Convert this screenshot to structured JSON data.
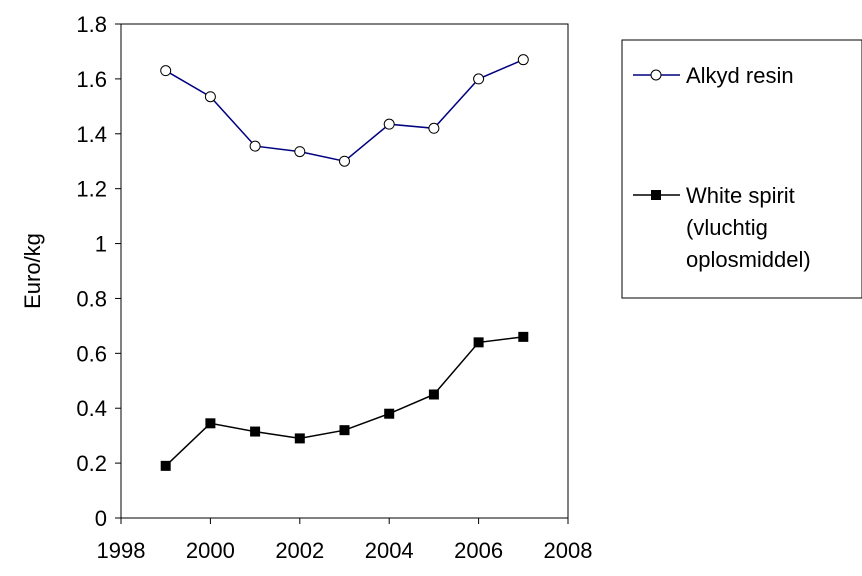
{
  "chart_data": {
    "type": "line",
    "title": "",
    "xlabel": "",
    "ylabel": "Euro/kg",
    "xlim": [
      1998,
      2008
    ],
    "ylim": [
      0,
      1.8
    ],
    "x_ticks": [
      "1998",
      "2000",
      "2002",
      "2004",
      "2006",
      "2008"
    ],
    "y_ticks": [
      "0",
      "0.2",
      "0.4",
      "0.6",
      "0.8",
      "1",
      "1.2",
      "1.4",
      "1.6",
      "1.8"
    ],
    "grid": false,
    "legend_position": "right",
    "series": [
      {
        "name": "Alkyd resin",
        "color": "#000080",
        "marker": "open-circle",
        "x": [
          1999,
          2000,
          2001,
          2002,
          2003,
          2004,
          2005,
          2006,
          2007
        ],
        "values": [
          1.63,
          1.535,
          1.355,
          1.335,
          1.3,
          1.435,
          1.42,
          1.6,
          1.67
        ]
      },
      {
        "name": "White spirit (vluchtig oplosmiddel)",
        "name_lines": [
          "White spirit",
          "(vluchtig",
          "oplosmiddel)"
        ],
        "color": "#000000",
        "marker": "filled-square",
        "x": [
          1999,
          2000,
          2001,
          2002,
          2003,
          2004,
          2005,
          2006,
          2007
        ],
        "values": [
          0.19,
          0.345,
          0.315,
          0.29,
          0.32,
          0.38,
          0.45,
          0.64,
          0.66
        ]
      }
    ]
  }
}
